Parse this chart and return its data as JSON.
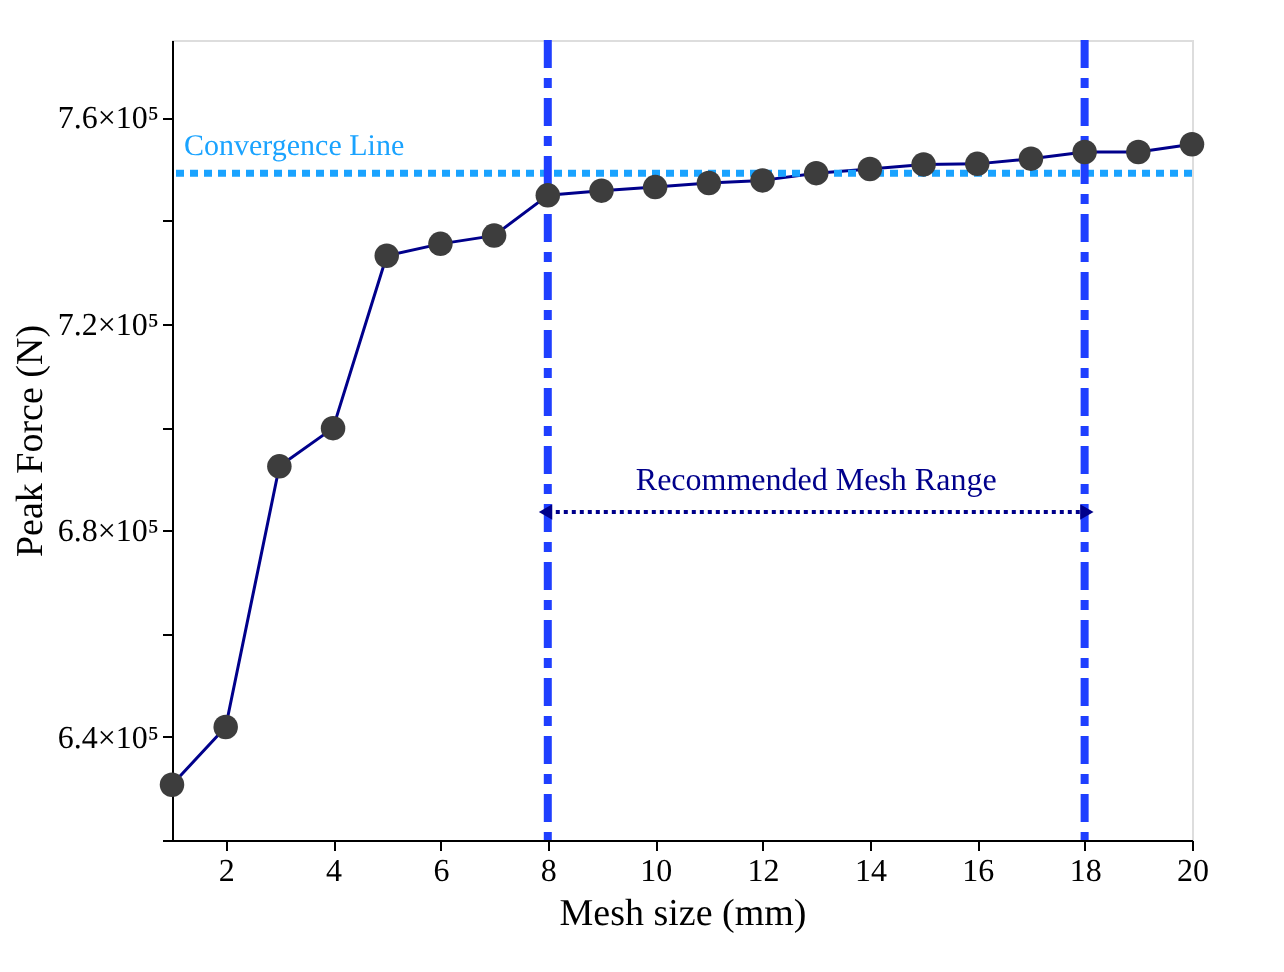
{
  "chart_data": {
    "type": "line",
    "xlabel": "Mesh size (mm)",
    "ylabel": "Peak Force (N)",
    "x": [
      1,
      2,
      3,
      4,
      5,
      6,
      7,
      8,
      9,
      10,
      11,
      12,
      13,
      14,
      15,
      16,
      17,
      18,
      19,
      20
    ],
    "series": [
      {
        "color": "#3d3d3d",
        "values": [
          630700,
          641900,
          692400,
          699800,
          733200,
          735500,
          737100,
          744900,
          745800,
          746500,
          747300,
          747800,
          749200,
          750000,
          750900,
          751000,
          752000,
          753300,
          753300,
          754800
        ]
      }
    ],
    "marker": "circle",
    "line_style": "solid",
    "grid": false,
    "legend": false,
    "xlim": [
      1,
      20
    ],
    "xticks": [
      2,
      4,
      6,
      8,
      10,
      12,
      14,
      16,
      18,
      20
    ],
    "ylim": [
      620000,
      775000
    ],
    "yticks": [
      {
        "value": 620000,
        "label": null
      },
      {
        "value": 640000,
        "label": "6.4×10⁵"
      },
      {
        "value": 660000,
        "label": null
      },
      {
        "value": 680000,
        "label": "6.8×10⁵"
      },
      {
        "value": 700000,
        "label": null
      },
      {
        "value": 720000,
        "label": "7.2×10⁵"
      },
      {
        "value": 740000,
        "label": null
      },
      {
        "value": 760000,
        "label": "7.6×10⁵"
      }
    ],
    "ref_lines": [
      {
        "axis": "y",
        "value": 749200,
        "label": "Convergence Line",
        "color": "#1aa3ff",
        "line_style": "dotted"
      },
      {
        "axis": "x",
        "value": 8,
        "color": "#1f3fff",
        "line_style": "dashdot"
      },
      {
        "axis": "x",
        "value": 18,
        "color": "#1f3fff",
        "line_style": "dashdot"
      }
    ],
    "annotations": [
      "Recommended Mesh Range"
    ]
  }
}
